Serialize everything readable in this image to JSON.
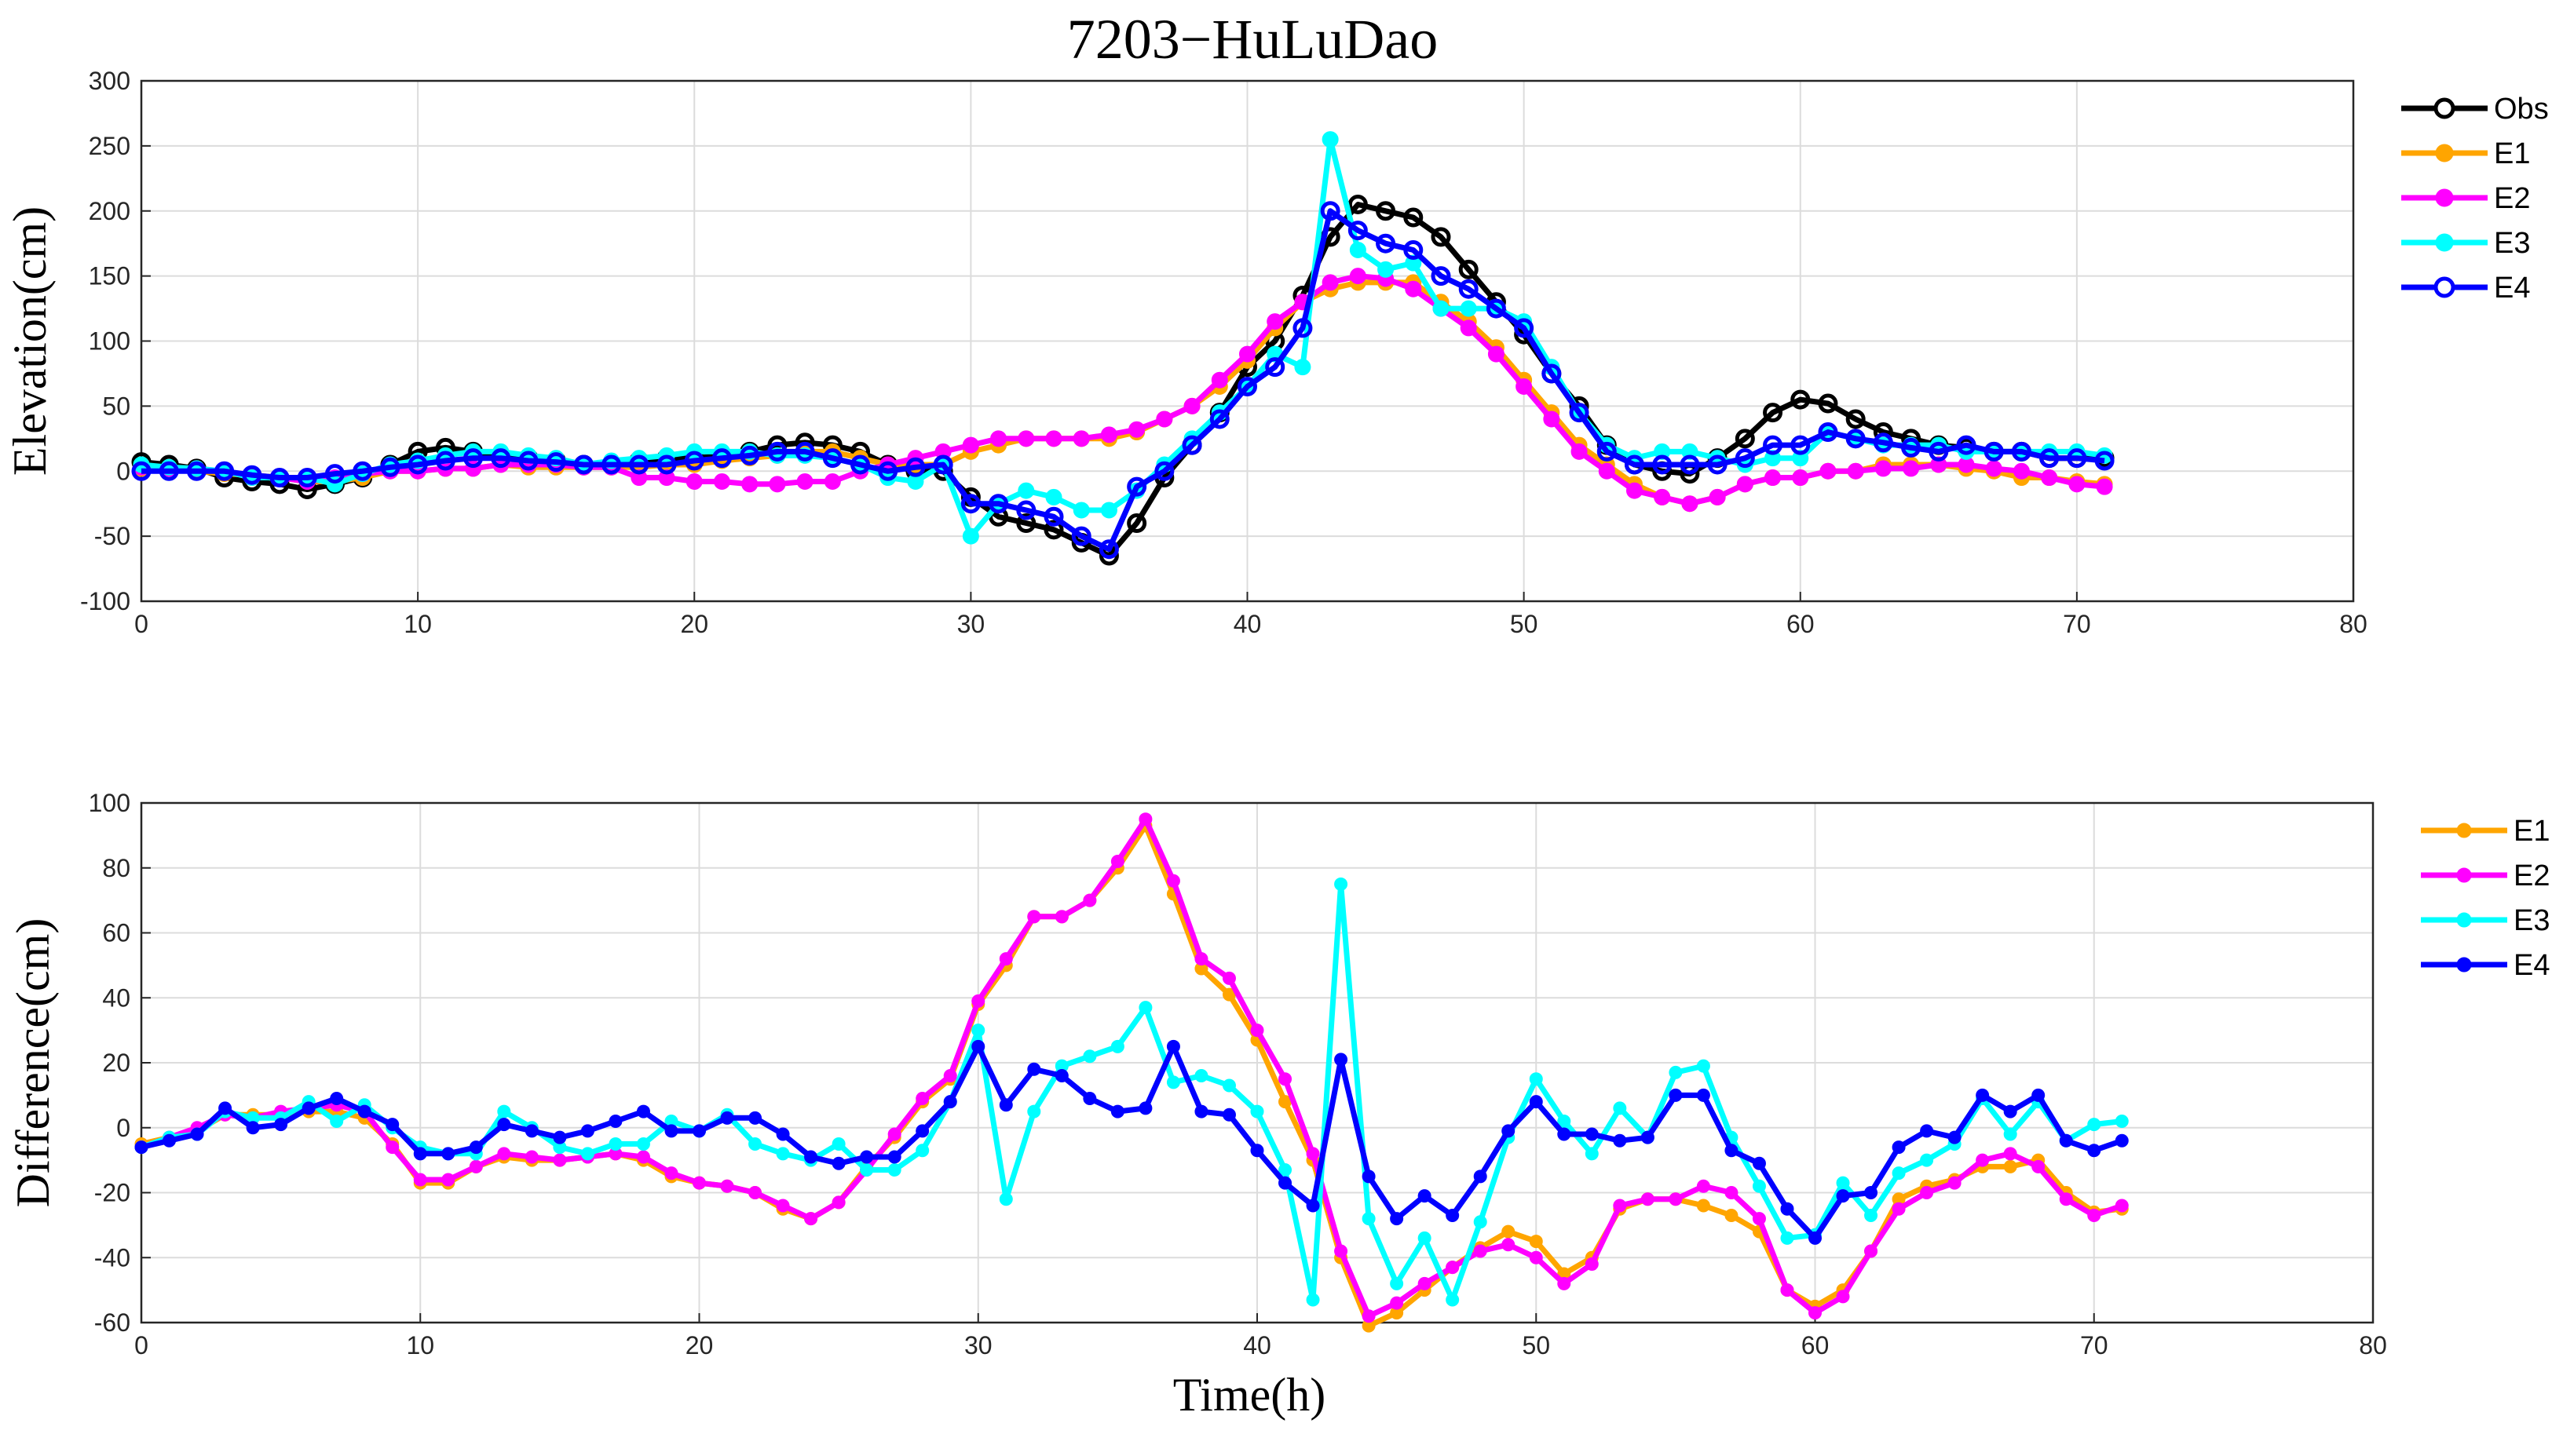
{
  "title": "7203−HuLuDao",
  "chart_data": [
    {
      "type": "line",
      "ylabel": "Elevation(cm)",
      "xlabel": "",
      "xlim": [
        0,
        80
      ],
      "ylim": [
        -100,
        300
      ],
      "xticks": [
        "0",
        "10",
        "20",
        "30",
        "40",
        "50",
        "60",
        "70",
        "80"
      ],
      "yticks": [
        "-100",
        "-50",
        "0",
        "50",
        "100",
        "150",
        "200",
        "250",
        "300"
      ],
      "grid": true,
      "legend_position": "outside-top-right",
      "series": [
        {
          "name": "Obs",
          "color": "#000000",
          "marker": "open-circle",
          "values": [
            7,
            5,
            2,
            -5,
            -8,
            -10,
            -14,
            -10,
            -5,
            5,
            15,
            18,
            15,
            10,
            10,
            8,
            5,
            5,
            8,
            10,
            10,
            12,
            15,
            20,
            22,
            20,
            15,
            5,
            0,
            0,
            -20,
            -35,
            -40,
            -45,
            -55,
            -65,
            -40,
            -5,
            20,
            45,
            80,
            100,
            135,
            180,
            205,
            200,
            195,
            180,
            155,
            130,
            105,
            75,
            50,
            20,
            5,
            0,
            -2,
            10,
            25,
            45,
            55,
            52,
            40,
            30,
            25,
            20,
            18,
            15,
            15,
            10,
            10,
            10
          ]
        },
        {
          "name": "E1",
          "color": "#FFA500",
          "marker": "filled-circle",
          "values": [
            2,
            2,
            0,
            -2,
            -3,
            -5,
            -8,
            -8,
            -5,
            0,
            0,
            2,
            2,
            5,
            3,
            3,
            3,
            3,
            3,
            5,
            5,
            8,
            10,
            12,
            15,
            15,
            10,
            5,
            5,
            5,
            15,
            20,
            25,
            25,
            25,
            25,
            30,
            40,
            50,
            65,
            85,
            110,
            130,
            140,
            145,
            145,
            145,
            130,
            115,
            95,
            70,
            45,
            20,
            5,
            -10,
            -20,
            -25,
            -20,
            -10,
            -5,
            -5,
            0,
            0,
            5,
            5,
            5,
            2,
            0,
            -5,
            -5,
            -8,
            -10
          ]
        },
        {
          "name": "E2",
          "color": "#FF00FF",
          "marker": "filled-circle",
          "values": [
            3,
            2,
            2,
            0,
            -5,
            -5,
            -8,
            -5,
            -2,
            0,
            0,
            2,
            2,
            5,
            5,
            5,
            3,
            3,
            -5,
            -5,
            -8,
            -8,
            -10,
            -10,
            -8,
            -8,
            0,
            5,
            10,
            15,
            20,
            25,
            25,
            25,
            25,
            28,
            32,
            40,
            50,
            70,
            90,
            115,
            130,
            145,
            150,
            148,
            140,
            125,
            110,
            90,
            65,
            40,
            15,
            0,
            -15,
            -20,
            -25,
            -20,
            -10,
            -5,
            -5,
            0,
            0,
            2,
            2,
            5,
            5,
            2,
            0,
            -5,
            -10,
            -12
          ]
        },
        {
          "name": "E3",
          "color": "#00FFFF",
          "marker": "filled-circle",
          "values": [
            5,
            3,
            2,
            0,
            -5,
            -5,
            -5,
            -10,
            -2,
            5,
            8,
            12,
            15,
            15,
            12,
            10,
            5,
            8,
            10,
            12,
            15,
            15,
            15,
            12,
            12,
            10,
            5,
            -5,
            -8,
            5,
            -50,
            -25,
            -15,
            -20,
            -30,
            -30,
            -15,
            5,
            25,
            45,
            65,
            90,
            80,
            255,
            170,
            155,
            160,
            125,
            125,
            125,
            115,
            80,
            45,
            20,
            10,
            15,
            15,
            10,
            5,
            10,
            10,
            30,
            25,
            20,
            20,
            20,
            15,
            15,
            15,
            15,
            15,
            12
          ]
        },
        {
          "name": "E4",
          "color": "#0000FF",
          "marker": "open-circle",
          "values": [
            0,
            0,
            0,
            0,
            -3,
            -5,
            -5,
            -2,
            0,
            3,
            5,
            8,
            10,
            10,
            8,
            7,
            5,
            5,
            5,
            5,
            8,
            10,
            12,
            15,
            15,
            10,
            5,
            0,
            3,
            5,
            -25,
            -25,
            -30,
            -35,
            -50,
            -60,
            -12,
            0,
            20,
            40,
            65,
            80,
            110,
            200,
            185,
            175,
            170,
            150,
            140,
            125,
            110,
            75,
            45,
            15,
            5,
            5,
            5,
            5,
            10,
            20,
            20,
            30,
            25,
            22,
            18,
            15,
            20,
            15,
            15,
            10,
            10,
            8
          ]
        }
      ]
    },
    {
      "type": "line",
      "ylabel": "Difference(cm)",
      "xlabel": "Time(h)",
      "xlim": [
        0,
        80
      ],
      "ylim": [
        -60,
        100
      ],
      "xticks": [
        "0",
        "10",
        "20",
        "30",
        "40",
        "50",
        "60",
        "70",
        "80"
      ],
      "yticks": [
        "-60",
        "-40",
        "-20",
        "0",
        "20",
        "40",
        "60",
        "80",
        "100"
      ],
      "grid": true,
      "legend_position": "outside-top-right",
      "series": [
        {
          "name": "E1",
          "color": "#FFA500",
          "marker": "filled-circle",
          "values": [
            -5,
            -3,
            -1,
            4,
            4,
            4,
            5,
            5,
            3,
            -5,
            -17,
            -17,
            -12,
            -9,
            -10,
            -10,
            -9,
            -8,
            -10,
            -15,
            -17,
            -18,
            -20,
            -25,
            -28,
            -23,
            -12,
            -3,
            8,
            15,
            38,
            50,
            65,
            65,
            70,
            80,
            93,
            72,
            49,
            41,
            27,
            8,
            -10,
            -40,
            -61,
            -57,
            -50,
            -43,
            -37,
            -32,
            -35,
            -45,
            -40,
            -25,
            -22,
            -22,
            -24,
            -27,
            -32,
            -50,
            -55,
            -50,
            -38,
            -22,
            -18,
            -16,
            -12,
            -12,
            -10,
            -20,
            -26,
            -25
          ]
        },
        {
          "name": "E2",
          "color": "#FF00FF",
          "marker": "filled-circle",
          "values": [
            -6,
            -3,
            0,
            4,
            3,
            5,
            6,
            7,
            5,
            -6,
            -16,
            -16,
            -12,
            -8,
            -9,
            -10,
            -9,
            -8,
            -9,
            -14,
            -17,
            -18,
            -20,
            -24,
            -28,
            -23,
            -13,
            -2,
            9,
            16,
            39,
            52,
            65,
            65,
            70,
            82,
            95,
            76,
            52,
            46,
            30,
            15,
            -8,
            -38,
            -58,
            -54,
            -48,
            -43,
            -38,
            -36,
            -40,
            -48,
            -42,
            -24,
            -22,
            -22,
            -18,
            -20,
            -28,
            -50,
            -57,
            -52,
            -38,
            -25,
            -20,
            -17,
            -10,
            -8,
            -12,
            -22,
            -27,
            -24
          ]
        },
        {
          "name": "E3",
          "color": "#00FFFF",
          "marker": "filled-circle",
          "values": [
            -6,
            -3,
            -2,
            5,
            3,
            3,
            8,
            2,
            7,
            0,
            -6,
            -8,
            -8,
            5,
            0,
            -6,
            -8,
            -5,
            -5,
            2,
            -1,
            4,
            -5,
            -8,
            -10,
            -5,
            -13,
            -13,
            -7,
            8,
            30,
            -22,
            5,
            19,
            22,
            25,
            37,
            14,
            16,
            13,
            5,
            -13,
            -53,
            75,
            -28,
            -48,
            -34,
            -53,
            -29,
            -3,
            15,
            2,
            -8,
            6,
            -3,
            17,
            19,
            -3,
            -18,
            -34,
            -33,
            -17,
            -27,
            -14,
            -10,
            -5,
            9,
            -2,
            8,
            -4,
            1,
            2
          ]
        },
        {
          "name": "E4",
          "color": "#0000FF",
          "marker": "filled-circle",
          "values": [
            -6,
            -4,
            -2,
            6,
            0,
            1,
            6,
            9,
            5,
            1,
            -8,
            -8,
            -6,
            1,
            -1,
            -3,
            -1,
            2,
            5,
            -1,
            -1,
            3,
            3,
            -2,
            -9,
            -11,
            -9,
            -9,
            -1,
            8,
            25,
            7,
            18,
            16,
            9,
            5,
            6,
            25,
            5,
            4,
            -7,
            -17,
            -24,
            21,
            -15,
            -28,
            -21,
            -27,
            -15,
            -1,
            8,
            -2,
            -2,
            -4,
            -3,
            10,
            10,
            -7,
            -11,
            -25,
            -34,
            -21,
            -20,
            -6,
            -1,
            -3,
            10,
            5,
            10,
            -4,
            -7,
            -4
          ]
        }
      ]
    }
  ]
}
